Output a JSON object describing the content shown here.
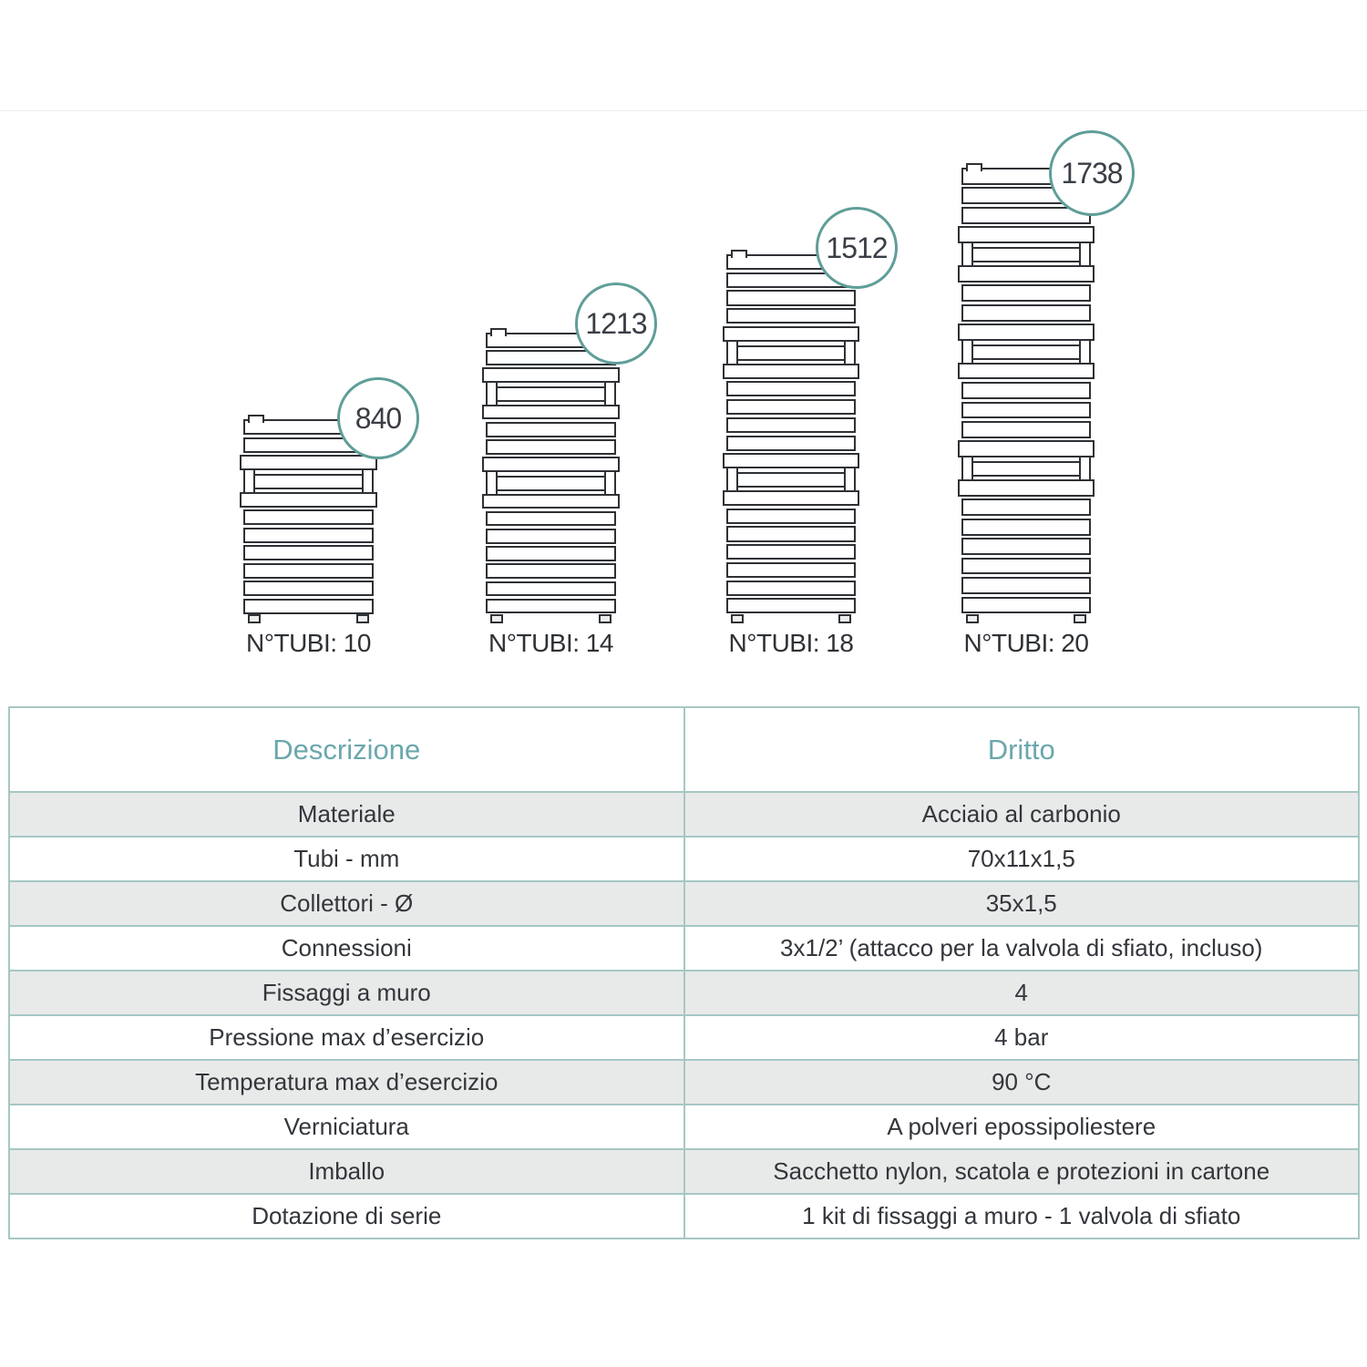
{
  "diagram": {
    "radiators": [
      {
        "height_mm": "840",
        "tubes_label": "N°TUBI: 10",
        "tube_groups": [
          3,
          7
        ]
      },
      {
        "height_mm": "1213",
        "tubes_label": "N°TUBI: 14",
        "tube_groups": [
          3,
          4,
          7
        ]
      },
      {
        "height_mm": "1512",
        "tubes_label": "N°TUBI: 18",
        "tube_groups": [
          5,
          6,
          7
        ]
      },
      {
        "height_mm": "1738",
        "tubes_label": "N°TUBI: 20",
        "tube_groups": [
          4,
          4,
          5,
          7
        ]
      }
    ]
  },
  "table": {
    "headers": [
      "Descrizione",
      "Dritto"
    ],
    "rows": [
      {
        "label": "Materiale",
        "value": "Acciaio al carbonio"
      },
      {
        "label": "Tubi - mm",
        "value": "70x11x1,5"
      },
      {
        "label": "Collettori - Ø",
        "value": "35x1,5"
      },
      {
        "label": "Connessioni",
        "value": "3x1/2’ (attacco per la valvola di sfiato, incluso)"
      },
      {
        "label": "Fissaggi a muro",
        "value": "4"
      },
      {
        "label": "Pressione max d’esercizio",
        "value": "4 bar"
      },
      {
        "label": "Temperatura max d’esercizio",
        "value": "90 °C"
      },
      {
        "label": "Verniciatura",
        "value": "A polveri epossipoliestere"
      },
      {
        "label": "Imballo",
        "value": "Sacchetto nylon, scatola e protezioni in cartone"
      },
      {
        "label": "Dotazione di serie",
        "value": "1 kit di fissaggi a muro - 1 valvola di sfiato"
      }
    ]
  },
  "colors": {
    "accent_teal": "#5f9e99",
    "header_text_teal": "#6ba7ac",
    "table_border": "#a6c7c4",
    "row_alt_bg": "#e8eae9",
    "line_dark": "#2e3135"
  }
}
